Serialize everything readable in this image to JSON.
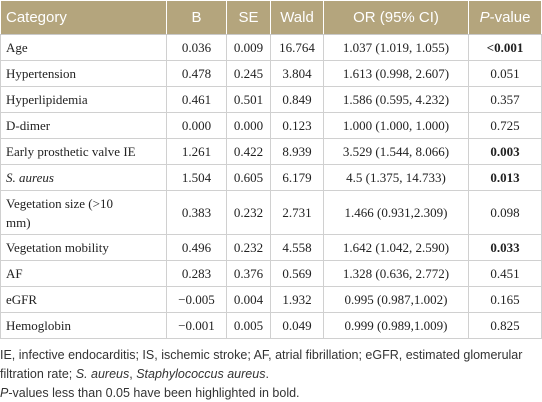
{
  "table": {
    "header": [
      "Category",
      "B",
      "SE",
      "Wald",
      "OR (95% CI)",
      "P-value"
    ],
    "rows": [
      {
        "cells": [
          "Age",
          "0.036",
          "0.009",
          "16.764",
          "1.037 (1.019, 1.055)",
          "<0.001"
        ],
        "p_bold": true
      },
      {
        "cells": [
          "Hypertension",
          "0.478",
          "0.245",
          "3.804",
          "1.613 (0.998, 2.607)",
          "0.051"
        ]
      },
      {
        "cells": [
          "Hyperlipidemia",
          "0.461",
          "0.501",
          "0.849",
          "1.586 (0.595, 4.232)",
          "0.357"
        ]
      },
      {
        "cells": [
          "D-dimer",
          "0.000",
          "0.000",
          "0.123",
          "1.000 (1.000, 1.000)",
          "0.725"
        ]
      },
      {
        "cells": [
          "Early prosthetic valve IE",
          "1.261",
          "0.422",
          "8.939",
          "3.529 (1.544, 8.066)",
          "0.003"
        ],
        "p_bold": true
      },
      {
        "cells": [
          "S. aureus",
          "1.504",
          "0.605",
          "6.179",
          "4.5 (1.375, 14.733)",
          "0.013"
        ],
        "p_bold": true,
        "label_italic": true
      },
      {
        "cells": [
          "Vegetation size (>10 mm)",
          "0.383",
          "0.232",
          "2.731",
          "1.466 (0.931,2.309)",
          "0.098"
        ]
      },
      {
        "cells": [
          "Vegetation mobility",
          "0.496",
          "0.232",
          "4.558",
          "1.642 (1.042, 2.590)",
          "0.033"
        ],
        "p_bold": true
      },
      {
        "cells": [
          "AF",
          "0.283",
          "0.376",
          "0.569",
          "1.328 (0.636, 2.772)",
          "0.451"
        ]
      },
      {
        "cells": [
          "eGFR",
          "−0.005",
          "0.004",
          "1.932",
          "0.995 (0.987,1.002)",
          "0.165"
        ]
      },
      {
        "cells": [
          "Hemoglobin",
          "−0.001",
          "0.005",
          "0.049",
          "0.999 (0.989,1.009)",
          "0.825"
        ]
      }
    ]
  },
  "notes": [
    {
      "segments": [
        {
          "text": "IE, infective endocarditis; IS, ischemic stroke; AF, atrial fibrillation; eGFR, estimated glomerular filtration rate; "
        },
        {
          "text": "S. aureus",
          "italic": true
        },
        {
          "text": ", "
        },
        {
          "text": "Staphylococcus aureus",
          "italic": true
        },
        {
          "text": "."
        }
      ]
    },
    {
      "segments": [
        {
          "text": "P",
          "italic": true
        },
        {
          "text": "-values less than 0.05 have been highlighted in bold."
        }
      ]
    }
  ]
}
